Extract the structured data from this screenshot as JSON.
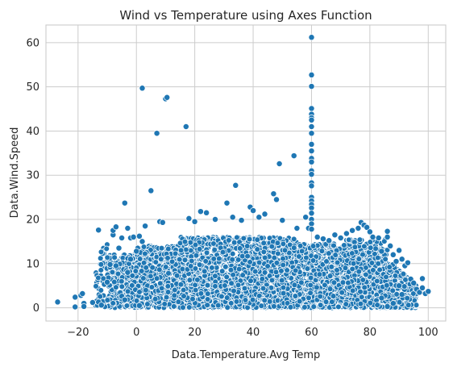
{
  "chart_data": {
    "type": "scatter",
    "title": "Wind vs Temperature using Axes Function",
    "xlabel": "Data.Temperature.Avg Temp",
    "ylabel": "Data.Wind.Speed",
    "xlim": [
      -31,
      106
    ],
    "ylim": [
      -3,
      64
    ],
    "xticks": [
      -20,
      0,
      20,
      40,
      60,
      80,
      100
    ],
    "yticks": [
      0,
      10,
      20,
      30,
      40,
      50,
      60
    ],
    "grid": true,
    "marker_color": "#1f77b4",
    "series": [
      {
        "values_note_free": true,
        "points": [
          [
            -27,
            1.3
          ],
          [
            -21,
            0.2
          ],
          [
            -21,
            2.4
          ],
          [
            -19,
            2.8
          ],
          [
            -18.5,
            3.2
          ],
          [
            -18,
            1.0
          ],
          [
            -18,
            0.3
          ],
          [
            -15,
            1.2
          ],
          [
            -13,
            1.3
          ],
          [
            -13,
            17.6
          ],
          [
            -12,
            0.6
          ],
          [
            -11,
            5.3
          ],
          [
            -10,
            5.8
          ],
          [
            -9,
            9.8
          ],
          [
            -8,
            16.5
          ],
          [
            -8,
            17.5
          ],
          [
            -7,
            18.3
          ],
          [
            -7,
            9.5
          ],
          [
            -6,
            13.5
          ],
          [
            -5,
            2.6
          ],
          [
            -5,
            15.8
          ],
          [
            -4,
            23.7
          ],
          [
            -4,
            1.8
          ],
          [
            -3,
            18.0
          ],
          [
            -3,
            8.0
          ],
          [
            -2,
            15.8
          ],
          [
            -2,
            11.0
          ],
          [
            -1,
            16.0
          ],
          [
            0,
            12.8
          ],
          [
            1,
            16.2
          ],
          [
            1,
            0.5
          ],
          [
            2,
            49.7
          ],
          [
            2,
            15.0
          ],
          [
            3,
            18.5
          ],
          [
            5,
            26.5
          ],
          [
            7,
            39.5
          ],
          [
            8,
            19.5
          ],
          [
            9,
            19.3
          ],
          [
            10,
            47.3
          ],
          [
            10.5,
            47.6
          ],
          [
            17,
            41.0
          ],
          [
            18,
            20.2
          ],
          [
            20,
            19.5
          ],
          [
            22,
            21.8
          ],
          [
            24,
            21.5
          ],
          [
            27,
            20.0
          ],
          [
            31,
            23.7
          ],
          [
            33,
            20.5
          ],
          [
            34,
            27.7
          ],
          [
            36,
            19.8
          ],
          [
            39,
            22.8
          ],
          [
            40,
            22.0
          ],
          [
            42,
            20.5
          ],
          [
            44,
            21.2
          ],
          [
            47,
            25.8
          ],
          [
            48,
            24.5
          ],
          [
            49,
            32.6
          ],
          [
            50,
            19.8
          ],
          [
            54,
            34.4
          ],
          [
            55,
            18.0
          ],
          [
            58,
            20.5
          ],
          [
            59,
            18.0
          ],
          [
            60,
            61.2
          ],
          [
            60,
            52.7
          ],
          [
            60,
            50.1
          ],
          [
            60,
            45.1
          ],
          [
            60,
            43.8
          ],
          [
            60,
            43.0
          ],
          [
            60,
            42.5
          ],
          [
            60,
            41.0
          ],
          [
            60,
            39.5
          ],
          [
            60,
            37.0
          ],
          [
            60,
            35.5
          ],
          [
            60,
            33.8
          ],
          [
            60,
            33.0
          ],
          [
            60,
            31.0
          ],
          [
            60,
            30.2
          ],
          [
            60,
            28.3
          ],
          [
            60,
            27.6
          ],
          [
            60,
            25.0
          ],
          [
            60,
            24.2
          ],
          [
            60,
            23.4
          ],
          [
            60,
            22.6
          ],
          [
            60,
            21.4
          ],
          [
            60,
            20.0
          ],
          [
            60,
            19.0
          ],
          [
            60,
            17.8
          ],
          [
            62,
            16.0
          ],
          [
            64,
            15.6
          ],
          [
            66,
            15.2
          ],
          [
            68,
            16.5
          ],
          [
            70,
            15.8
          ],
          [
            72,
            16.8
          ],
          [
            74,
            17.5
          ],
          [
            76,
            18.0
          ],
          [
            77,
            19.3
          ],
          [
            78,
            18.7
          ],
          [
            79,
            18.2
          ],
          [
            80,
            17.2
          ],
          [
            81,
            16.0
          ],
          [
            83,
            15.8
          ],
          [
            84,
            12.8
          ],
          [
            86,
            17.3
          ],
          [
            86,
            16.0
          ],
          [
            87,
            14.0
          ],
          [
            88,
            12.0
          ],
          [
            89,
            10.5
          ],
          [
            90,
            13.0
          ],
          [
            91,
            11.0
          ],
          [
            92,
            9.5
          ],
          [
            93,
            10.2
          ],
          [
            94,
            6.5
          ],
          [
            95,
            5.6
          ],
          [
            96,
            4.2
          ],
          [
            97,
            3.5
          ],
          [
            98,
            6.6
          ],
          [
            98,
            4.5
          ],
          [
            99,
            3.2
          ],
          [
            100,
            3.7
          ],
          [
            88,
            1.0
          ],
          [
            86,
            0.3
          ],
          [
            84,
            2.2
          ],
          [
            91,
            3.0
          ],
          [
            90,
            5.0
          ]
        ]
      }
    ]
  }
}
